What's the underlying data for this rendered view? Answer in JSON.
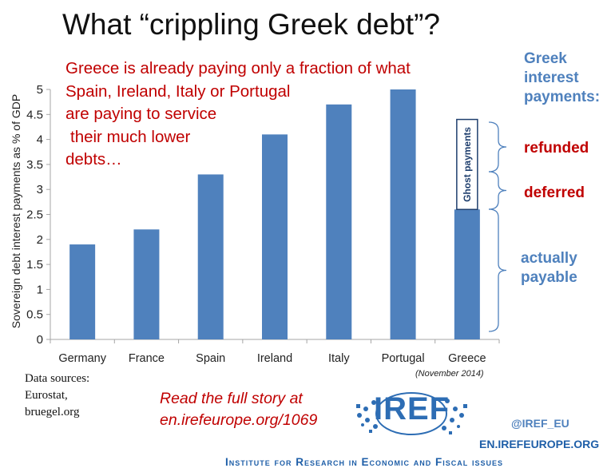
{
  "header": {
    "title": "What “crippling Greek debt”?"
  },
  "callout": {
    "lines": [
      "Greece is already paying only a fraction of what",
      "Spain, Ireland, Italy or Portugal",
      "are paying to service",
      "their much lower",
      "debts…"
    ]
  },
  "side_labels": {
    "heading": [
      "Greek",
      "interest",
      "payments:"
    ],
    "refunded": "refunded",
    "deferred": "deferred",
    "payable": [
      "actually",
      "payable"
    ]
  },
  "chart_data": {
    "type": "bar",
    "categories": [
      "Germany",
      "France",
      "Spain",
      "Ireland",
      "Italy",
      "Portugal",
      "Greece"
    ],
    "values": [
      1.9,
      2.2,
      3.3,
      4.1,
      4.7,
      5.0,
      2.6
    ],
    "ghost": {
      "category": "Greece",
      "from": 2.6,
      "to": 4.4,
      "label": "Ghost payments"
    },
    "ylabel": "Sovereign debt interest payments as % of GDP",
    "ylim": [
      0,
      5
    ],
    "yticks": [
      "0",
      "0.5",
      "1",
      "1.5",
      "2",
      "2.5",
      "3",
      "3.5",
      "4",
      "4.5",
      "5"
    ],
    "grid": false,
    "colors": {
      "bar": "#4f81bd",
      "axis": "#a6a6a6",
      "bracket": "#4f81bd"
    }
  },
  "footer": {
    "date_note": "(November 2014)",
    "sources": [
      "Data sources:",
      "Eurostat,",
      "bruegel.org"
    ],
    "story": [
      "Read the full story at",
      "en.irefeurope.org/1069"
    ],
    "logo": "IREF",
    "handle": "@IREF_EU",
    "site": "EN.IREFEUROPE.ORG",
    "institute": "Institute for Research in Economic and Fiscal issues"
  }
}
